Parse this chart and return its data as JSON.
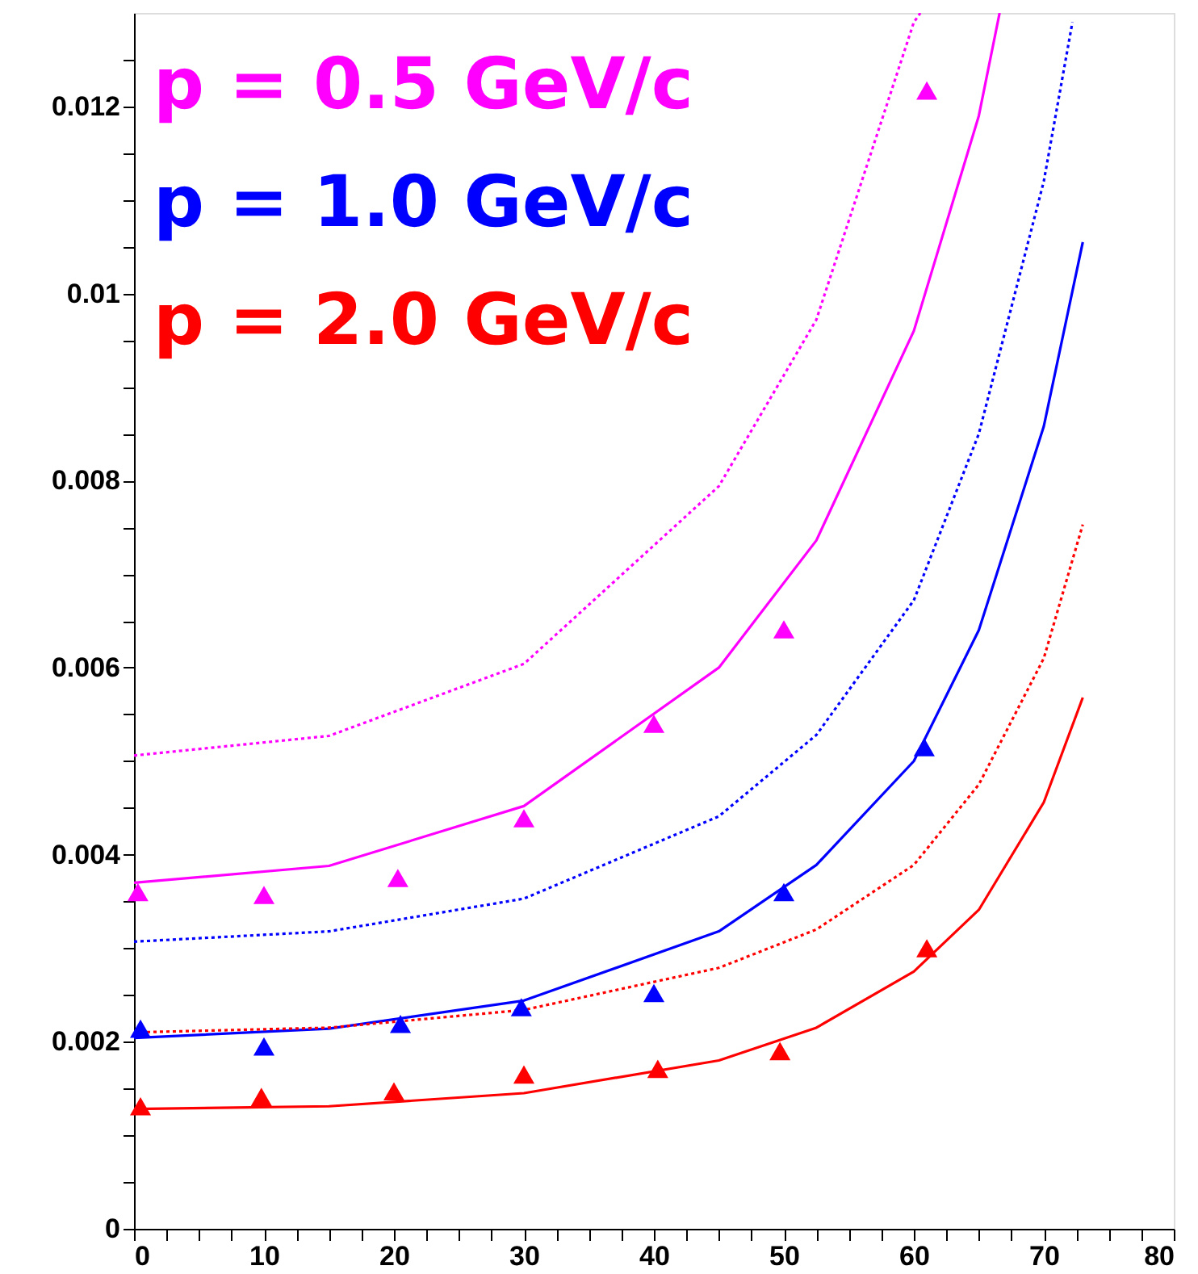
{
  "chart_data": {
    "type": "line",
    "legend": "top left",
    "grid": false,
    "xlim": [
      0,
      80
    ],
    "ylim": [
      0,
      0.013
    ],
    "xticks": [
      0,
      {
        "value": 2.5,
        "label": null
      },
      {
        "value": 5,
        "label": null
      },
      {
        "value": 7.5,
        "label": null
      },
      10,
      {
        "value": 12.5,
        "label": null
      },
      {
        "value": 15,
        "label": null
      },
      {
        "value": 17.5,
        "label": null
      },
      20,
      {
        "value": 22.5,
        "label": null
      },
      {
        "value": 25,
        "label": null
      },
      {
        "value": 27.5,
        "label": null
      },
      30,
      {
        "value": 32.5,
        "label": null
      },
      {
        "value": 35,
        "label": null
      },
      {
        "value": 37.5,
        "label": null
      },
      40,
      {
        "value": 42.5,
        "label": null
      },
      {
        "value": 45,
        "label": null
      },
      {
        "value": 47.5,
        "label": null
      },
      50,
      {
        "value": 52.5,
        "label": null
      },
      {
        "value": 55,
        "label": null
      },
      {
        "value": 57.5,
        "label": null
      },
      60,
      {
        "value": 62.5,
        "label": null
      },
      {
        "value": 65,
        "label": null
      },
      {
        "value": 67.5,
        "label": null
      },
      70,
      {
        "value": 72.5,
        "label": null
      },
      {
        "value": 75,
        "label": null
      },
      {
        "value": 77.5,
        "label": null
      },
      80
    ],
    "yticks": [
      0,
      {
        "value": 0.0005,
        "label": null
      },
      {
        "value": 0.001,
        "label": null
      },
      {
        "value": 0.0015,
        "label": null
      },
      0.002,
      {
        "value": 0.0025,
        "label": null
      },
      {
        "value": 0.003,
        "label": null
      },
      {
        "value": 0.0035,
        "label": null
      },
      0.004,
      {
        "value": 0.0045,
        "label": null
      },
      {
        "value": 0.005,
        "label": null
      },
      {
        "value": 0.0055,
        "label": null
      },
      0.006,
      {
        "value": 0.0065,
        "label": null
      },
      {
        "value": 0.007,
        "label": null
      },
      {
        "value": 0.0075,
        "label": null
      },
      0.008,
      {
        "value": 0.0085,
        "label": null
      },
      {
        "value": 0.009,
        "label": null
      },
      {
        "value": 0.0095,
        "label": null
      },
      0.01,
      {
        "value": 0.0105,
        "label": null
      },
      {
        "value": 0.011,
        "label": null
      },
      {
        "value": 0.0115,
        "label": null
      },
      0.012,
      {
        "value": 0.0125,
        "label": null
      }
    ],
    "series": [
      {
        "line_style": "dotted",
        "color": "#ff00ff",
        "x": [
          0,
          15,
          30,
          45,
          52.5,
          60,
          60.5
        ],
        "values": [
          0.00506,
          0.00527,
          0.00604,
          0.00794,
          0.00972,
          0.0129,
          0.013
        ]
      },
      {
        "line_style": "solid",
        "color": "#ff00ff",
        "x": [
          0,
          15,
          30,
          45,
          52.5,
          60,
          65,
          66.6
        ],
        "values": [
          0.0037,
          0.00388,
          0.00452,
          0.006,
          0.00736,
          0.0096,
          0.0119,
          0.013
        ]
      },
      {
        "line_style": "dotted",
        "color": "#0000ff",
        "x": [
          0,
          15,
          30,
          45,
          52.5,
          60,
          65,
          70,
          72.2
        ],
        "values": [
          0.00307,
          0.00318,
          0.00353,
          0.00441,
          0.00528,
          0.00672,
          0.0085,
          0.0112,
          0.0129
        ]
      },
      {
        "line_style": "solid",
        "color": "#0000ff",
        "x": [
          0,
          15,
          30,
          45,
          52.5,
          60,
          65,
          70,
          73
        ],
        "values": [
          0.00204,
          0.00214,
          0.00244,
          0.00318,
          0.00389,
          0.005,
          0.0064,
          0.00858,
          0.01055
        ]
      },
      {
        "line_style": "dotted",
        "color": "#ff0000",
        "x": [
          0,
          15,
          30,
          45,
          52.5,
          60,
          65,
          70,
          73
        ],
        "values": [
          0.0021,
          0.00215,
          0.00234,
          0.00279,
          0.0032,
          0.00389,
          0.00475,
          0.0061,
          0.00753
        ]
      },
      {
        "line_style": "solid",
        "color": "#ff0000",
        "x": [
          0,
          15,
          30,
          45,
          52.5,
          60,
          65,
          70,
          73
        ],
        "values": [
          0.00128,
          0.00131,
          0.00145,
          0.0018,
          0.00215,
          0.00275,
          0.00341,
          0.00456,
          0.00568
        ]
      },
      {
        "type": "scatter",
        "name": "p = 0.5 GeV/c",
        "color": "#ff00ff",
        "marker": "triangle",
        "x": [
          0.3,
          10,
          20.3,
          30,
          40,
          50,
          61
        ],
        "values": [
          0.0036,
          0.00357,
          0.00375,
          0.00439,
          0.0054,
          0.00641,
          0.01217
        ]
      },
      {
        "type": "scatter",
        "name": "p = 1.0 GeV/c",
        "color": "#0000ff",
        "marker": "triangle",
        "x": [
          0.5,
          10,
          20.5,
          29.8,
          40,
          50,
          60.8
        ],
        "values": [
          0.00214,
          0.00195,
          0.00219,
          0.00237,
          0.00252,
          0.0036,
          0.00515
        ]
      },
      {
        "type": "scatter",
        "name": "p = 2.0 GeV/c",
        "color": "#ff0000",
        "marker": "triangle",
        "x": [
          0.5,
          9.8,
          20,
          30,
          40.3,
          49.7,
          61
        ],
        "values": [
          0.00131,
          0.00141,
          0.00147,
          0.00165,
          0.00171,
          0.0019,
          0.003
        ]
      }
    ]
  }
}
